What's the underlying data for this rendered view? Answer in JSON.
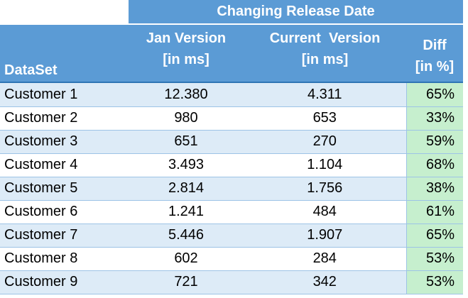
{
  "table": {
    "group_header": "Changing Release Date",
    "headers": {
      "dataset": "DataSet",
      "jan_line1": "Jan Version",
      "jan_line2": "[in ms]",
      "cur_line1": "Current  Version",
      "cur_line2": "[in ms]",
      "diff_line1": "Diff",
      "diff_line2": "[in %]"
    },
    "rows": [
      {
        "name": "Customer 1",
        "jan": "12.380",
        "current": "4.311",
        "diff": "65%"
      },
      {
        "name": "Customer 2",
        "jan": "980",
        "current": "653",
        "diff": "33%"
      },
      {
        "name": "Customer 3",
        "jan": "651",
        "current": "270",
        "diff": "59%"
      },
      {
        "name": "Customer 4",
        "jan": "3.493",
        "current": "1.104",
        "diff": "68%"
      },
      {
        "name": "Customer 5",
        "jan": "2.814",
        "current": "1.756",
        "diff": "38%"
      },
      {
        "name": "Customer 6",
        "jan": "1.241",
        "current": "484",
        "diff": "61%"
      },
      {
        "name": "Customer 7",
        "jan": "5.446",
        "current": "1.907",
        "diff": "65%"
      },
      {
        "name": "Customer 8",
        "jan": "602",
        "current": "284",
        "diff": "53%"
      },
      {
        "name": "Customer 9",
        "jan": "721",
        "current": "342",
        "diff": "53%"
      }
    ],
    "colors": {
      "header_fill": "#5b9bd5",
      "band_fill": "#ddebf7",
      "diff_fill": "#c6efce"
    }
  }
}
